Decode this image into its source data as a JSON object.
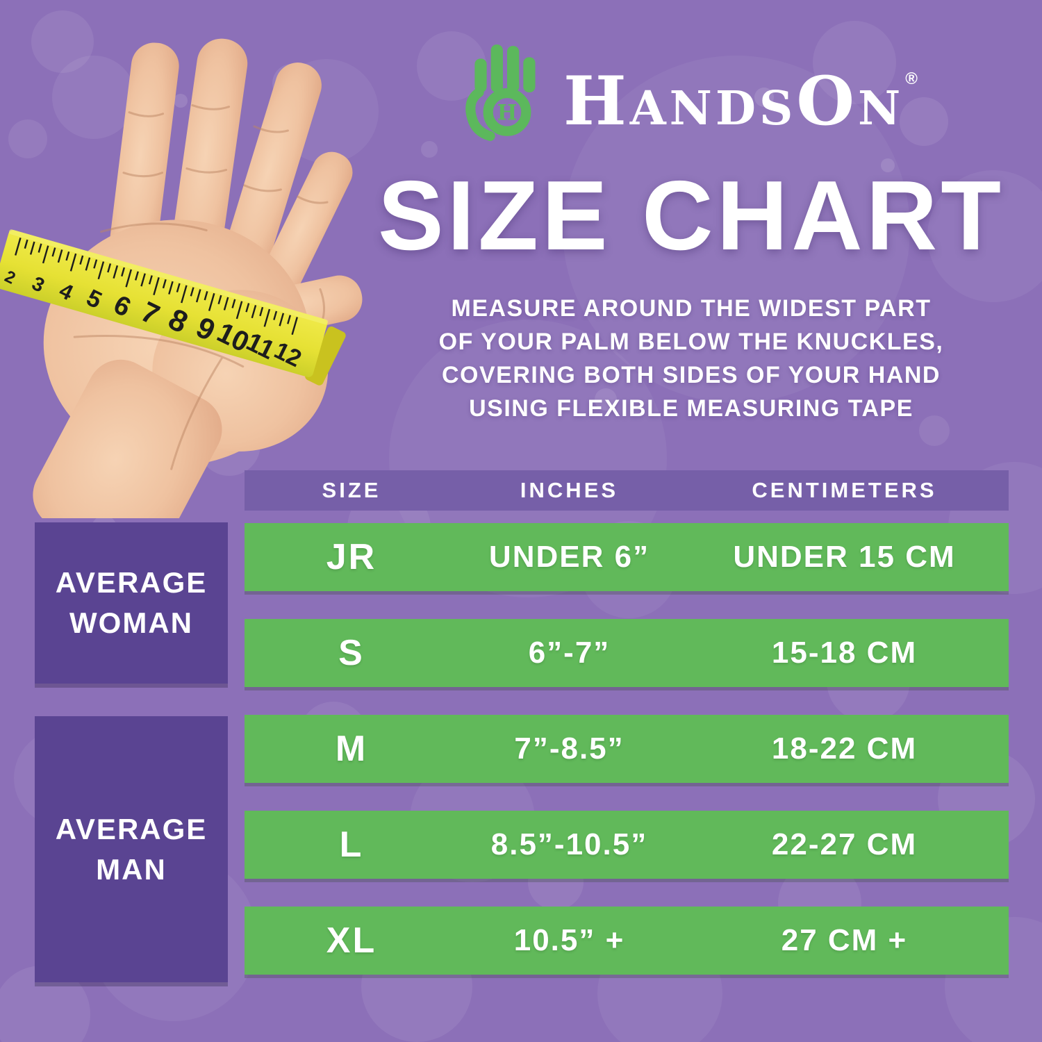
{
  "brand": {
    "name": "HandsOn",
    "part1": "H",
    "part2": "ANDS",
    "part3": "O",
    "part4": "N",
    "registered": "®",
    "logo_green": "#5cb85c"
  },
  "title": "SIZE CHART",
  "instructions": {
    "lines": [
      "MEASURE AROUND THE WIDEST PART",
      "OF YOUR PALM BELOW THE KNUCKLES,",
      "COVERING BOTH SIDES OF YOUR HAND",
      "USING FLEXIBLE MEASURING TAPE"
    ]
  },
  "chart_data": {
    "type": "table",
    "title": "SIZE CHART",
    "columns": [
      "SIZE",
      "INCHES",
      "CENTIMETERS"
    ],
    "rows": [
      [
        "JR",
        "UNDER 6”",
        "UNDER 15 CM"
      ],
      [
        "S",
        "6”-7”",
        "15-18 CM"
      ],
      [
        "M",
        "7”-8.5”",
        "18-22 CM"
      ],
      [
        "L",
        "8.5”-10.5”",
        "22-27 CM"
      ],
      [
        "XL",
        "10.5” +",
        "27 CM +"
      ]
    ],
    "row_groups": [
      {
        "label": "AVERAGE WOMAN",
        "rows": [
          "JR",
          "S"
        ]
      },
      {
        "label": "AVERAGE MAN",
        "rows": [
          "M",
          "L",
          "XL"
        ]
      }
    ]
  },
  "group_labels": [
    {
      "line1": "AVERAGE",
      "line2": "WOMAN"
    },
    {
      "line1": "AVERAGE",
      "line2": "MAN"
    }
  ],
  "hand_tape": {
    "numbers": [
      "2",
      "3",
      "4",
      "5",
      "6",
      "7",
      "8",
      "9",
      "10",
      "11",
      "12"
    ]
  },
  "colors": {
    "background": "#8c70b8",
    "header_strip": "#765fa8",
    "row_green": "#61b95a",
    "group_box": "#5a4492",
    "tape_yellow": "#e6e134",
    "text": "#ffffff"
  }
}
